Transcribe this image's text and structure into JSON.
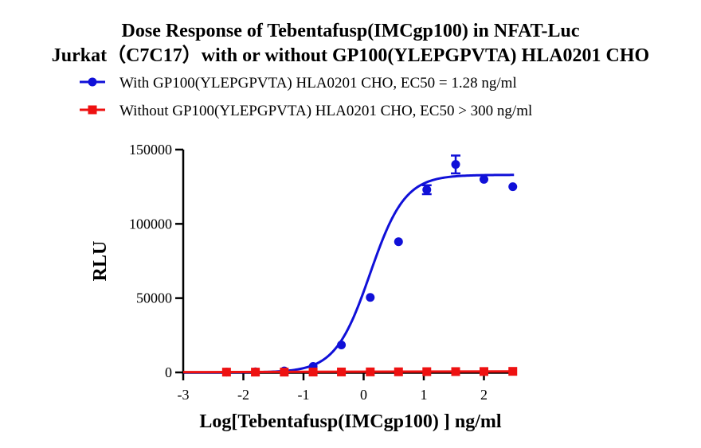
{
  "chart_data": {
    "type": "scatter",
    "title_lines": [
      "Dose Response of Tebentafusp(IMCgp100) in NFAT-Luc",
      "Jurkat（C7C17）with or without GP100(YLEPGPVTA) HLA0201 CHO"
    ],
    "xlabel": "Log[Tebentafusp(IMCgp100) ] ng/ml",
    "ylabel": "RLU",
    "xlim": [
      -3,
      2.5
    ],
    "ylim": [
      0,
      150000
    ],
    "x_ticks": [
      {
        "value": -3,
        "label": "-3"
      },
      {
        "value": -2,
        "label": "-2"
      },
      {
        "value": -1,
        "label": "-1"
      },
      {
        "value": 0,
        "label": "0"
      },
      {
        "value": 1,
        "label": "1"
      },
      {
        "value": 2,
        "label": "2"
      }
    ],
    "y_ticks": [
      {
        "value": 0,
        "label": "0"
      },
      {
        "value": 50000,
        "label": "50000"
      },
      {
        "value": 100000,
        "label": "100000"
      },
      {
        "value": 150000,
        "label": "150000"
      }
    ],
    "legend_position": "top",
    "series": [
      {
        "name": "With GP100(YLEPGPVTA) HLA0201 CHO, EC50 = 1.28 ng/ml",
        "color": "#1010d8",
        "marker": "circle",
        "points": [
          {
            "x": -2.28,
            "y": 200
          },
          {
            "x": -1.8,
            "y": 400
          },
          {
            "x": -1.32,
            "y": 1000
          },
          {
            "x": -0.84,
            "y": 4000
          },
          {
            "x": -0.37,
            "y": 18500
          },
          {
            "x": 0.11,
            "y": 50500
          },
          {
            "x": 0.58,
            "y": 88000
          },
          {
            "x": 1.05,
            "y": 123000,
            "err": 3000
          },
          {
            "x": 1.53,
            "y": 140000,
            "err": 6000
          },
          {
            "x": 2.0,
            "y": 130000
          },
          {
            "x": 2.48,
            "y": 125000
          }
        ],
        "fit": {
          "bottom": 0,
          "top": 133000,
          "log_ec50": 0.107,
          "hill_slope": 1.5
        }
      },
      {
        "name": "Without GP100(YLEPGPVTA) HLA0201 CHO, EC50 > 300 ng/ml",
        "color": "#ee1111",
        "marker": "square",
        "points": [
          {
            "x": -2.28,
            "y": 200
          },
          {
            "x": -1.8,
            "y": 200
          },
          {
            "x": -1.32,
            "y": 200
          },
          {
            "x": -0.84,
            "y": 250
          },
          {
            "x": -0.37,
            "y": 300
          },
          {
            "x": 0.11,
            "y": 350
          },
          {
            "x": 0.58,
            "y": 400
          },
          {
            "x": 1.05,
            "y": 500
          },
          {
            "x": 1.53,
            "y": 550
          },
          {
            "x": 2.0,
            "y": 600
          },
          {
            "x": 2.48,
            "y": 700
          }
        ]
      }
    ]
  }
}
